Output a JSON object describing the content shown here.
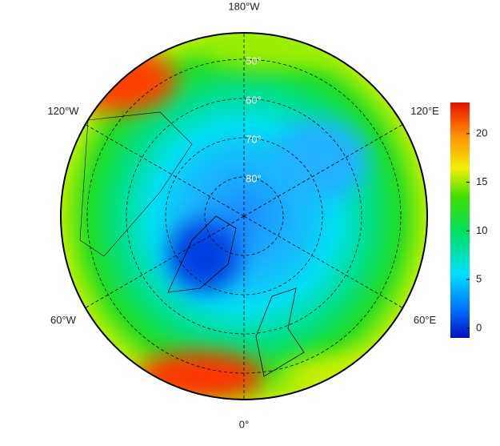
{
  "map": {
    "meridians": [
      {
        "value": -180,
        "label": "180°W"
      },
      {
        "value": -120,
        "label": "120°W"
      },
      {
        "value": -60,
        "label": "60°W"
      },
      {
        "value": 0,
        "label": "0°"
      },
      {
        "value": 60,
        "label": "60°E"
      },
      {
        "value": 120,
        "label": "120°E"
      }
    ],
    "parallels": [
      {
        "value": 50,
        "label": "50°"
      },
      {
        "value": 60,
        "label": "60°"
      },
      {
        "value": 70,
        "label": "70°"
      },
      {
        "value": 80,
        "label": "80°"
      }
    ]
  },
  "colorbar": {
    "range": [
      -1,
      23.2
    ],
    "ticks": [
      0,
      5,
      10,
      15,
      20
    ]
  }
}
